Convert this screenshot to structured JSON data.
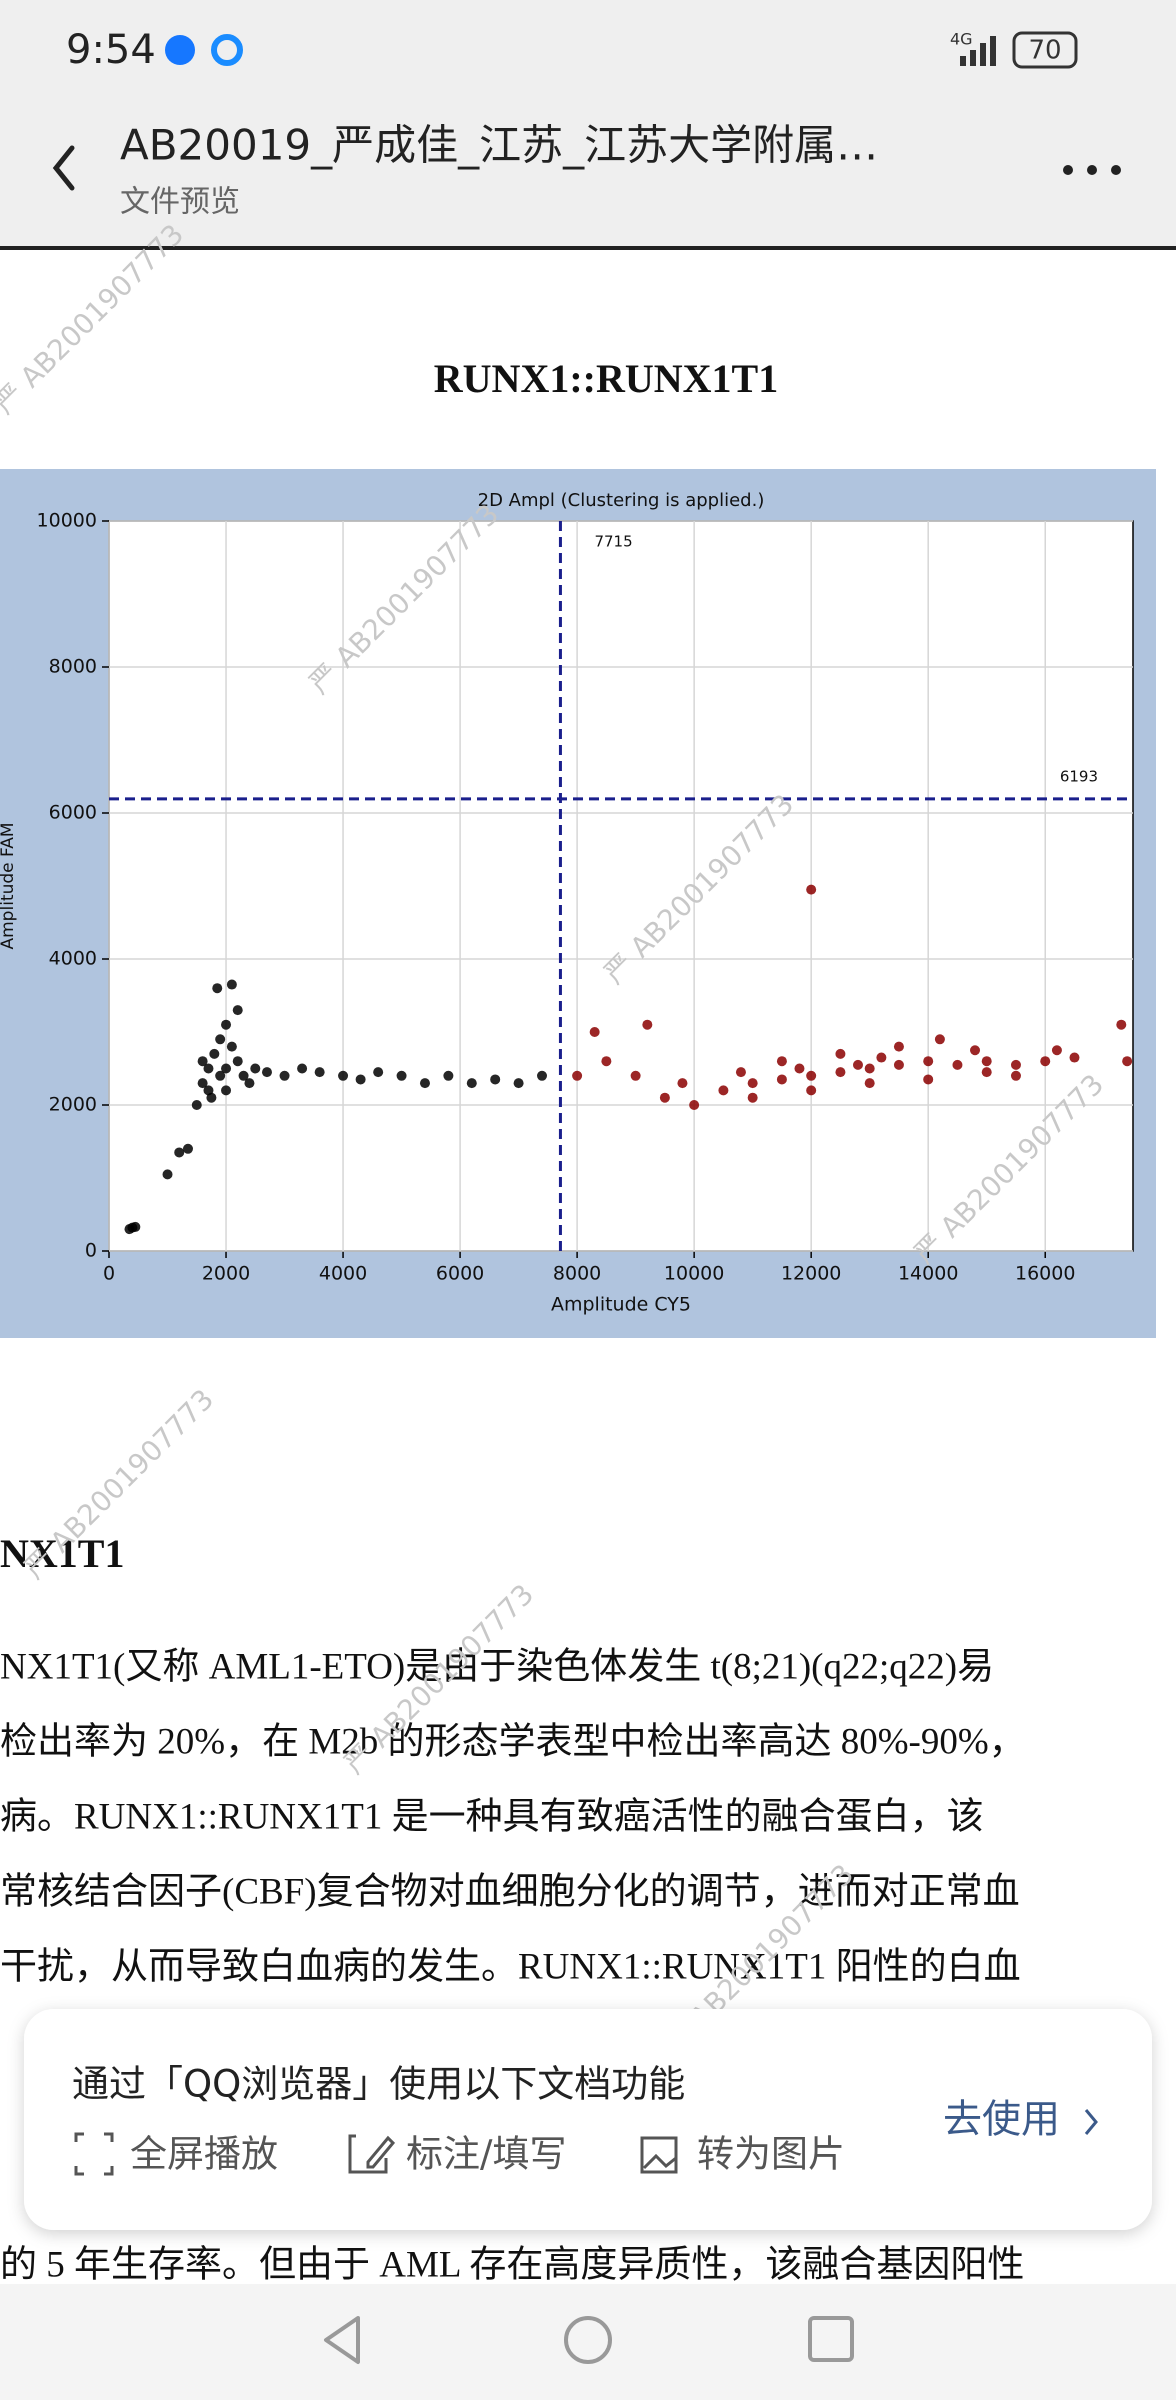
{
  "status_bar": {
    "time": "9:54",
    "network": "4G",
    "battery": "70"
  },
  "header": {
    "title": "AB20019_严成佳_江苏_江苏大学附属…",
    "subtitle": "文件预览"
  },
  "watermark": "严 AB2001907773",
  "document": {
    "figure_heading": "RUNX1::RUNX1T1",
    "section_heading": "NX1T1",
    "paragraph": [
      "NX1T1(又称 AML1-ETO)是由于染色体发生 t(8;21)(q22;q22)易",
      "检出率为 20%，在 M2b 的形态学表型中检出率高达 80%-90%，",
      "病。RUNX1::RUNX1T1 是一种具有致癌活性的融合蛋白，该",
      "常核结合因子(CBF)复合物对血细胞分化的调节，进而对正常血",
      "干扰，从而导致白血病的发生。RUNX1::RUNX1T1 阳性的白血"
    ],
    "last_line": "的 5 年生存率。但由于 AML 存在高度异质性，该融合基因阳性"
  },
  "chart_data": {
    "type": "scatter",
    "title": "2D Ampl (Clustering is applied.)",
    "x_label": "Amplitude CY5",
    "y_label": "Amplitude FAM",
    "xlim": [
      0,
      17500
    ],
    "ylim": [
      0,
      10000
    ],
    "xticks": [
      0,
      2000,
      4000,
      6000,
      8000,
      10000,
      12000,
      14000,
      16000
    ],
    "yticks": [
      0,
      2000,
      4000,
      6000,
      8000,
      10000
    ],
    "grid": true,
    "thresholds": {
      "x": 7715,
      "y": 6193,
      "color": "#1a1f8c"
    },
    "series": [
      {
        "color": "#000000",
        "x": [
          400,
          450,
          350,
          1000,
          1200,
          1350,
          1500,
          1600,
          1700,
          1800,
          1900,
          2000,
          1850,
          2100,
          2000,
          1750,
          2200,
          2300,
          2500,
          2700,
          3000,
          3300,
          3600,
          4000,
          4300,
          4600,
          5000,
          5400,
          5800,
          6200,
          6600,
          7000,
          7400,
          1600,
          1900,
          2100,
          2400,
          1700,
          2000,
          2200
        ],
        "y": [
          320,
          330,
          300,
          1050,
          1350,
          1400,
          2000,
          2300,
          2500,
          2700,
          2900,
          3100,
          3600,
          3650,
          2200,
          2100,
          2600,
          2400,
          2500,
          2450,
          2400,
          2500,
          2450,
          2400,
          2350,
          2450,
          2400,
          2300,
          2400,
          2300,
          2350,
          2300,
          2400,
          2600,
          2400,
          2800,
          2300,
          2200,
          2500,
          3300
        ]
      },
      {
        "color": "#8b0000",
        "x": [
          8000,
          8500,
          9000,
          9500,
          9800,
          10000,
          10500,
          11000,
          11500,
          12000,
          12500,
          13000,
          13500,
          14000,
          14500,
          15000,
          15500,
          16000,
          16500,
          11000,
          12000,
          13000,
          14000,
          15000,
          12500,
          13500,
          14200,
          11500,
          12000,
          8300,
          9200,
          17300,
          17400,
          16200,
          14800,
          13200,
          11800,
          10800,
          12800,
          15500
        ],
        "y": [
          2400,
          2600,
          2400,
          2100,
          2300,
          2000,
          2200,
          2300,
          2350,
          2400,
          2450,
          2500,
          2550,
          2600,
          2550,
          2600,
          2550,
          2600,
          2650,
          2100,
          2200,
          2300,
          2350,
          2450,
          2700,
          2800,
          2900,
          2600,
          4950,
          3000,
          3100,
          3100,
          2600,
          2750,
          2750,
          2650,
          2500,
          2450,
          2550,
          2400
        ]
      }
    ]
  },
  "popup": {
    "prompt": "通过「QQ浏览器」使用以下文档功能",
    "actions": [
      "全屏播放",
      "标注/填写",
      "转为图片"
    ],
    "button": "去使用"
  }
}
